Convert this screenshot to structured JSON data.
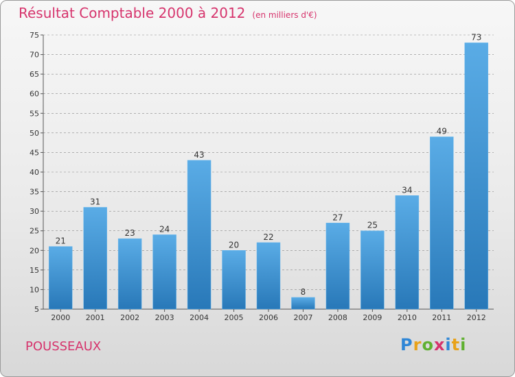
{
  "header": {
    "title": "Résultat Comptable 2000 à 2012",
    "subtitle": "(en milliers d'€)"
  },
  "footer": {
    "commune": "POUSSEAUX",
    "logo_text": "Proxiti"
  },
  "colors": {
    "title": "#d6336c",
    "bar_top": "#5aace6",
    "bar_bottom": "#2878b8",
    "grid": "#888888"
  },
  "chart_data": {
    "type": "bar",
    "title": "Résultat Comptable 2000 à 2012",
    "subtitle": "(en milliers d'€)",
    "xlabel": "",
    "ylabel": "",
    "categories": [
      "2000",
      "2001",
      "2002",
      "2003",
      "2004",
      "2005",
      "2006",
      "2007",
      "2008",
      "2009",
      "2010",
      "2011",
      "2012"
    ],
    "values": [
      21,
      31,
      23,
      24,
      43,
      20,
      22,
      8,
      27,
      25,
      34,
      49,
      73
    ],
    "ylim": [
      5,
      75
    ],
    "yticks": [
      5,
      10,
      15,
      20,
      25,
      30,
      35,
      40,
      45,
      50,
      55,
      60,
      65,
      70,
      75
    ],
    "grid": true
  }
}
